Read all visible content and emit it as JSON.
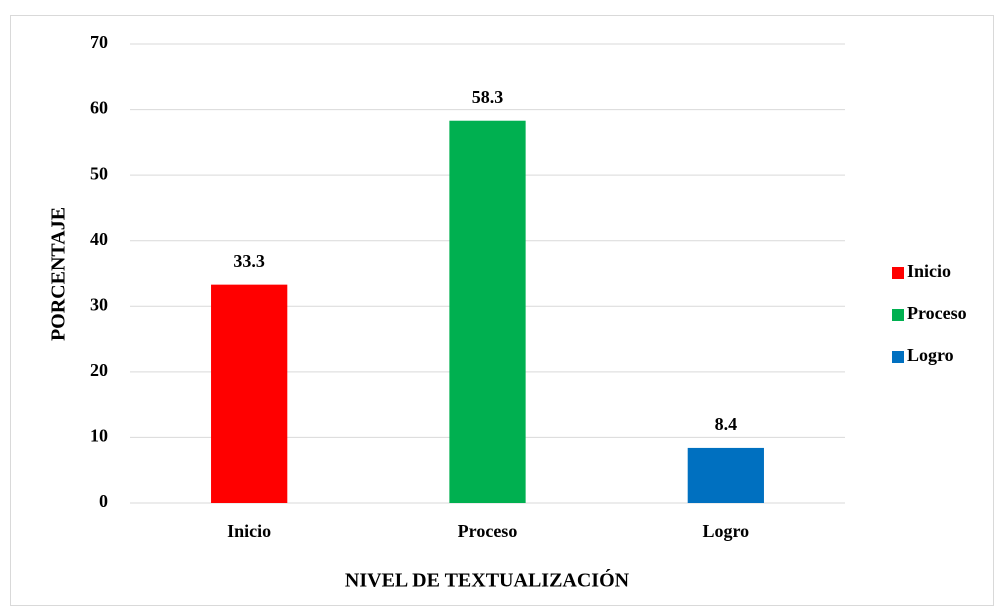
{
  "chart_data": {
    "type": "bar",
    "x_label": "NIVEL DE TEXTUALIZACIÓN",
    "y_label": "PORCENTAJE",
    "categories": [
      "Inicio",
      "Proceso",
      "Logro"
    ],
    "values": [
      33.3,
      58.3,
      8.4
    ],
    "colors": [
      "#ff0000",
      "#00b050",
      "#0070c0"
    ],
    "ylim": [
      0,
      70
    ],
    "yticks": [
      0,
      10,
      20,
      30,
      40,
      50,
      60,
      70
    ],
    "grid": true,
    "legend": "right"
  }
}
